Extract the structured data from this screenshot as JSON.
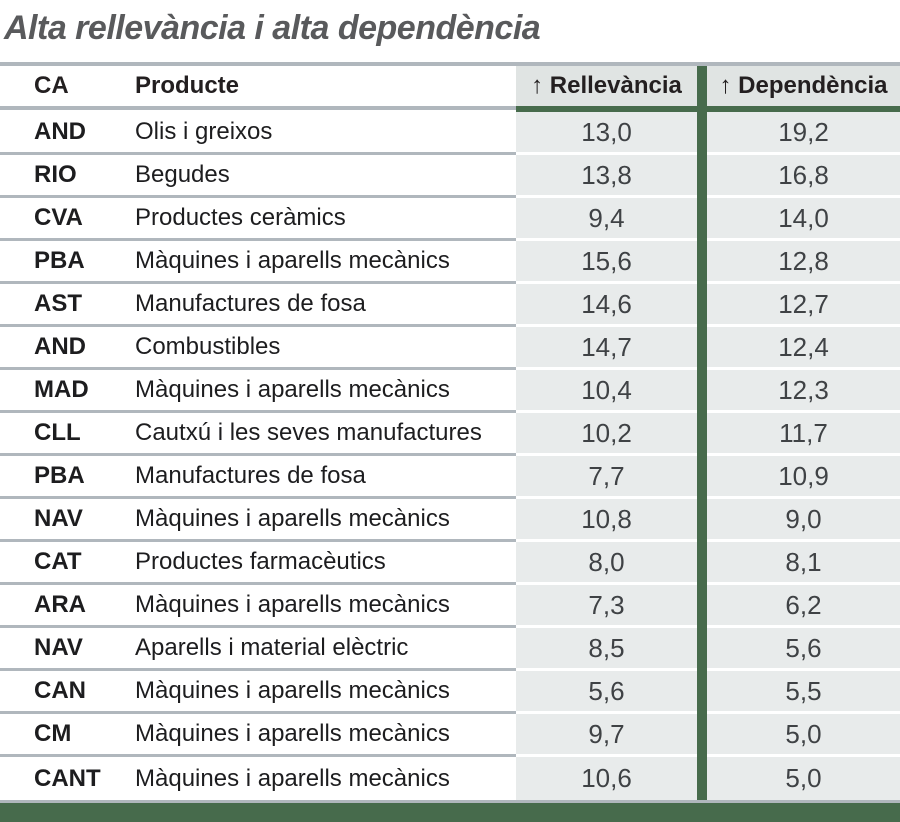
{
  "title": "Alta rellevància i alta dependència",
  "table": {
    "headers": {
      "ca": "CA",
      "producte": "Producte",
      "rellevancia": "↑ Rellevància",
      "dependencia": "↑ Dependència"
    },
    "rows": [
      {
        "ca": "AND",
        "producte": "Olis i greixos",
        "rellevancia": "13,0",
        "dependencia": "19,2"
      },
      {
        "ca": "RIO",
        "producte": "Begudes",
        "rellevancia": "13,8",
        "dependencia": "16,8"
      },
      {
        "ca": "CVA",
        "producte": "Productes ceràmics",
        "rellevancia": "9,4",
        "dependencia": "14,0"
      },
      {
        "ca": "PBA",
        "producte": "Màquines i aparells mecànics",
        "rellevancia": "15,6",
        "dependencia": "12,8"
      },
      {
        "ca": "AST",
        "producte": "Manufactures de fosa",
        "rellevancia": "14,6",
        "dependencia": "12,7"
      },
      {
        "ca": "AND",
        "producte": "Combustibles",
        "rellevancia": "14,7",
        "dependencia": "12,4"
      },
      {
        "ca": "MAD",
        "producte": "Màquines i aparells mecànics",
        "rellevancia": "10,4",
        "dependencia": "12,3"
      },
      {
        "ca": "CLL",
        "producte": "Cautxú i les seves manufactures",
        "rellevancia": "10,2",
        "dependencia": "11,7"
      },
      {
        "ca": "PBA",
        "producte": "Manufactures de fosa",
        "rellevancia": "7,7",
        "dependencia": "10,9"
      },
      {
        "ca": "NAV",
        "producte": "Màquines i aparells mecànics",
        "rellevancia": "10,8",
        "dependencia": "9,0"
      },
      {
        "ca": "CAT",
        "producte": "Productes farmacèutics",
        "rellevancia": "8,0",
        "dependencia": "8,1"
      },
      {
        "ca": "ARA",
        "producte": "Màquines i aparells mecànics",
        "rellevancia": "7,3",
        "dependencia": "6,2"
      },
      {
        "ca": "NAV",
        "producte": "Aparells i material elèctric",
        "rellevancia": "8,5",
        "dependencia": "5,6"
      },
      {
        "ca": "CAN",
        "producte": "Màquines i aparells mecànics",
        "rellevancia": "5,6",
        "dependencia": "5,5"
      },
      {
        "ca": "CM",
        "producte": "Màquines i aparells mecànics",
        "rellevancia": "9,7",
        "dependencia": "5,0"
      },
      {
        "ca": "CANT",
        "producte": "Màquines i aparells mecànics",
        "rellevancia": "10,6",
        "dependencia": "5,0"
      }
    ]
  },
  "colors": {
    "accent_green": "#476b4c",
    "line_gray": "#b0b7bd",
    "cell_bg": "#e8ebeb",
    "header_bg": "#e0e4e3",
    "title_gray": "#595a5c"
  }
}
